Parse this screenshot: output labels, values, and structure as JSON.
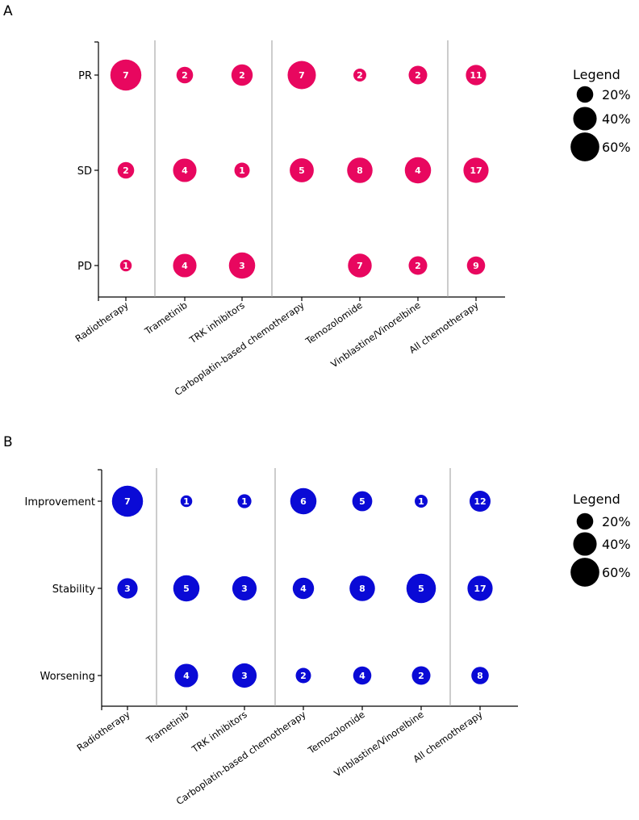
{
  "chart_data": [
    {
      "type": "bubble",
      "panel_label": "A",
      "categories": [
        "Radiotherapy",
        "Trametinib",
        "TRK inhibitors",
        "Carboplatin-based chemotherapy",
        "Temozolomide",
        "Vinblastine/Vinorelbine",
        "All chemotherapy"
      ],
      "rows": [
        "PR",
        "SD",
        "PD"
      ],
      "counts": [
        [
          7,
          2,
          1
        ],
        [
          2,
          4,
          4
        ],
        [
          2,
          1,
          3
        ],
        [
          7,
          5,
          null
        ],
        [
          2,
          8,
          7
        ],
        [
          2,
          4,
          2
        ],
        [
          11,
          17,
          9
        ]
      ],
      "percents": [
        [
          70,
          20,
          10
        ],
        [
          20,
          40,
          40
        ],
        [
          33,
          17,
          50
        ],
        [
          58,
          42,
          null
        ],
        [
          12,
          47,
          41
        ],
        [
          25,
          50,
          25
        ],
        [
          30,
          46,
          24
        ]
      ],
      "color": "#e8075f",
      "group_separators_after": [
        0,
        2,
        5
      ],
      "legend": {
        "title": "Legend",
        "items": [
          "20%",
          "40%",
          "60%"
        ],
        "values": [
          20,
          40,
          60
        ]
      }
    },
    {
      "type": "bubble",
      "panel_label": "B",
      "categories": [
        "Radiotherapy",
        "Trametinib",
        "TRK inhibitors",
        "Carboplatin-based chemotherapy",
        "Temozolomide",
        "Vinblastine/Vinorelbine",
        "All chemotherapy"
      ],
      "rows": [
        "Improvement",
        "Stability",
        "Worsening"
      ],
      "counts": [
        [
          7,
          3,
          null
        ],
        [
          1,
          5,
          4
        ],
        [
          1,
          3,
          3
        ],
        [
          6,
          4,
          2
        ],
        [
          5,
          8,
          4
        ],
        [
          1,
          5,
          2
        ],
        [
          12,
          17,
          8
        ]
      ],
      "percents": [
        [
          70,
          30,
          null
        ],
        [
          10,
          50,
          40
        ],
        [
          14,
          43,
          43
        ],
        [
          50,
          33,
          17
        ],
        [
          29,
          47,
          24
        ],
        [
          12,
          63,
          25
        ],
        [
          32,
          46,
          22
        ]
      ],
      "color": "#0a0ad6",
      "group_separators_after": [
        0,
        2,
        5
      ],
      "legend": {
        "title": "Legend",
        "items": [
          "20%",
          "40%",
          "60%"
        ],
        "values": [
          20,
          40,
          60
        ]
      }
    }
  ]
}
